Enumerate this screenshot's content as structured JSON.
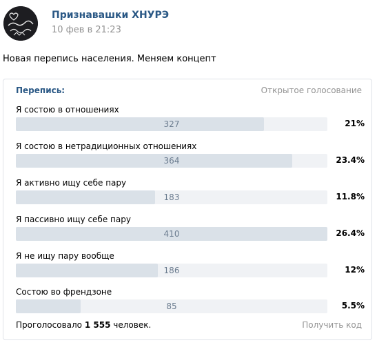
{
  "post": {
    "author": "Признавашки ХНУРЭ",
    "date": "10 фев в 21:23",
    "text": "Новая перепись населения. Меняем концепт",
    "avatar_text": "Признавашки ХНУРЭ"
  },
  "poll": {
    "title": "Перепись:",
    "type": "Открытое голосование",
    "options": [
      {
        "label": "Я состою в отношениях",
        "count": "327",
        "percent": "21%",
        "value": 21
      },
      {
        "label": "Я состою в нетрадиционных отношениях",
        "count": "364",
        "percent": "23.4%",
        "value": 23.4
      },
      {
        "label": "Я активно ищу себе пару",
        "count": "183",
        "percent": "11.8%",
        "value": 11.8
      },
      {
        "label": "Я пассивно ищу себе пару",
        "count": "410",
        "percent": "26.4%",
        "value": 26.4
      },
      {
        "label": "Я не ищу пару вообще",
        "count": "186",
        "percent": "12%",
        "value": 12
      },
      {
        "label": "Состою во френдзоне",
        "count": "85",
        "percent": "5.5%",
        "value": 5.5
      }
    ],
    "total_prefix": "Проголосовало",
    "total_count": "1 555",
    "total_suffix": "человек.",
    "get_code": "Получить код"
  },
  "colors": {
    "link": "#2a5885",
    "muted": "#939393",
    "bar_bg": "#f0f2f5",
    "bar_fill": "#dae1e8"
  }
}
